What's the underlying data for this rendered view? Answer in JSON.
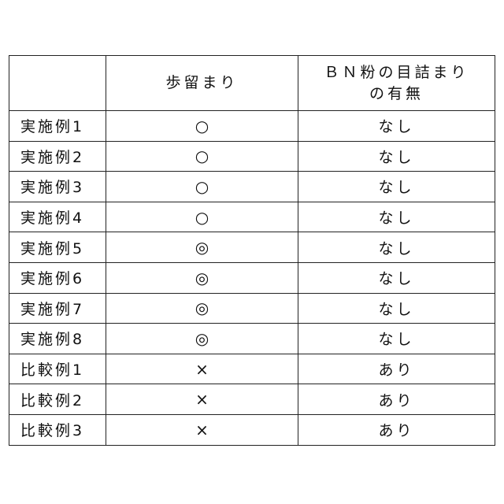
{
  "table": {
    "headers": [
      "",
      "歩留まり",
      "ＢＮ粉の目詰まりの有無"
    ],
    "header_lines": {
      "col3_line1": "ＢＮ粉の目詰まり",
      "col3_line2": "の有無"
    },
    "rows": [
      {
        "label": "実施例1",
        "yield": "○",
        "clogging": "なし"
      },
      {
        "label": "実施例2",
        "yield": "○",
        "clogging": "なし"
      },
      {
        "label": "実施例3",
        "yield": "○",
        "clogging": "なし"
      },
      {
        "label": "実施例4",
        "yield": "○",
        "clogging": "なし"
      },
      {
        "label": "実施例5",
        "yield": "◎",
        "clogging": "なし"
      },
      {
        "label": "実施例6",
        "yield": "◎",
        "clogging": "なし"
      },
      {
        "label": "実施例7",
        "yield": "◎",
        "clogging": "なし"
      },
      {
        "label": "実施例8",
        "yield": "◎",
        "clogging": "なし"
      },
      {
        "label": "比較例1",
        "yield": "×",
        "clogging": "あり"
      },
      {
        "label": "比較例2",
        "yield": "×",
        "clogging": "あり"
      },
      {
        "label": "比較例3",
        "yield": "×",
        "clogging": "あり"
      }
    ]
  }
}
